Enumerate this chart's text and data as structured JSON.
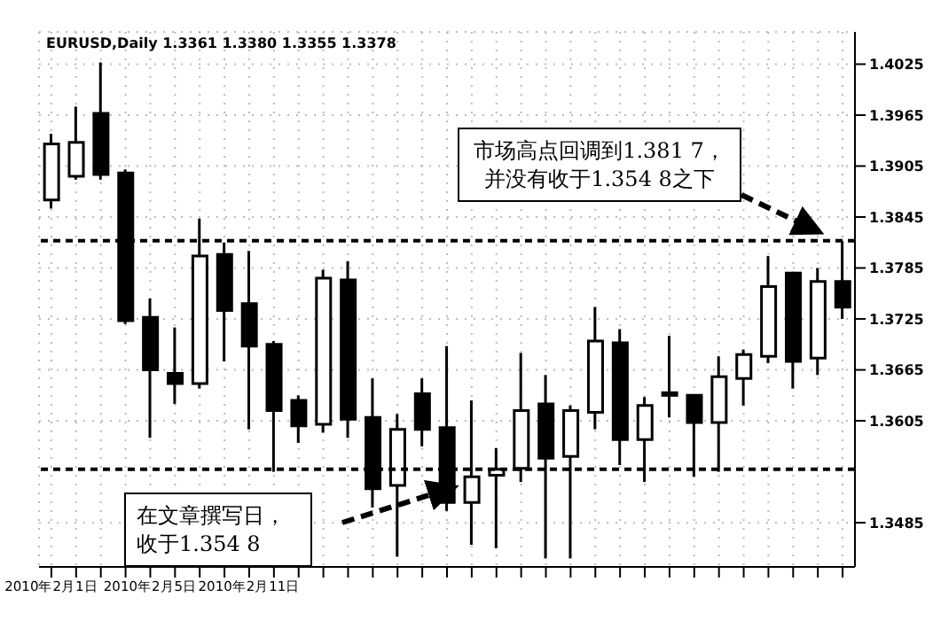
{
  "chart_data": {
    "type": "candlestick",
    "title": "EURUSD,Daily  1.3361 1.3380 1.3355 1.3378",
    "categories": [
      "2010年2月1日",
      null,
      null,
      null,
      "2010年2月5日",
      null,
      null,
      null,
      "2010年2月11日",
      null,
      null,
      null,
      null,
      null,
      null,
      null,
      null,
      null,
      null,
      null,
      null,
      null,
      null,
      null,
      null,
      null,
      null,
      null,
      null,
      null,
      null,
      null,
      null
    ],
    "ohlc": [
      [
        1.3865,
        1.3943,
        1.3855,
        1.3931
      ],
      [
        1.3893,
        1.3975,
        1.3889,
        1.3933
      ],
      [
        1.3967,
        1.4027,
        1.3889,
        1.3895
      ],
      [
        1.3897,
        1.3901,
        1.3719,
        1.3723
      ],
      [
        1.3727,
        1.3749,
        1.3585,
        1.3665
      ],
      [
        1.3661,
        1.3715,
        1.3625,
        1.3649
      ],
      [
        1.3649,
        1.3843,
        1.3643,
        1.3799
      ],
      [
        1.3801,
        1.3815,
        1.3675,
        1.3735
      ],
      [
        1.3743,
        1.3805,
        1.3595,
        1.3693
      ],
      [
        1.3695,
        1.3699,
        1.3545,
        1.3617
      ],
      [
        1.3629,
        1.3635,
        1.3579,
        1.3599
      ],
      [
        1.3601,
        1.3783,
        1.3591,
        1.3773
      ],
      [
        1.3771,
        1.3793,
        1.3585,
        1.3607
      ],
      [
        1.3609,
        1.3655,
        1.3503,
        1.3525
      ],
      [
        1.3529,
        1.3613,
        1.3445,
        1.3595
      ],
      [
        1.3637,
        1.3655,
        1.3575,
        1.3595
      ],
      [
        1.3597,
        1.3693,
        1.3499,
        1.3509
      ],
      [
        1.3509,
        1.3629,
        1.3459,
        1.3539
      ],
      [
        1.3541,
        1.3573,
        1.3455,
        1.3548
      ],
      [
        1.3549,
        1.3685,
        1.3533,
        1.3617
      ],
      [
        1.3625,
        1.3659,
        1.3443,
        1.3561
      ],
      [
        1.3563,
        1.3623,
        1.3443,
        1.3617
      ],
      [
        1.3615,
        1.3739,
        1.3595,
        1.3699
      ],
      [
        1.3697,
        1.3713,
        1.3553,
        1.3583
      ],
      [
        1.3583,
        1.3633,
        1.3533,
        1.3623
      ],
      [
        1.3635,
        1.3705,
        1.3609,
        1.3637
      ],
      [
        1.3635,
        1.3635,
        1.3539,
        1.3603
      ],
      [
        1.3603,
        1.3681,
        1.3545,
        1.3657
      ],
      [
        1.3655,
        1.3689,
        1.3623,
        1.3683
      ],
      [
        1.3681,
        1.3799,
        1.3673,
        1.3763
      ],
      [
        1.3779,
        1.3779,
        1.3643,
        1.3675
      ],
      [
        1.3679,
        1.3785,
        1.3659,
        1.3769
      ],
      [
        1.3769,
        1.3817,
        1.3725,
        1.3739
      ]
    ],
    "color": "#000000",
    "ylim": [
      1.3433,
      1.4063
    ],
    "yticks": [
      1.4025,
      1.3965,
      1.3905,
      1.3845,
      1.3785,
      1.3725,
      1.3665,
      1.3605,
      1.3485
    ],
    "ref_lines": [
      {
        "axis": "y",
        "value": 1.3817,
        "line_style": "dashed",
        "color": "#000000"
      },
      {
        "axis": "y",
        "value": 1.3548,
        "line_style": "dashed",
        "color": "#000000"
      }
    ],
    "annotations": [
      "市场高点回调到1.381 7，并没有收于1.354 8之下",
      "在文章撰写日，收于1.354 8"
    ],
    "grid": true
  }
}
